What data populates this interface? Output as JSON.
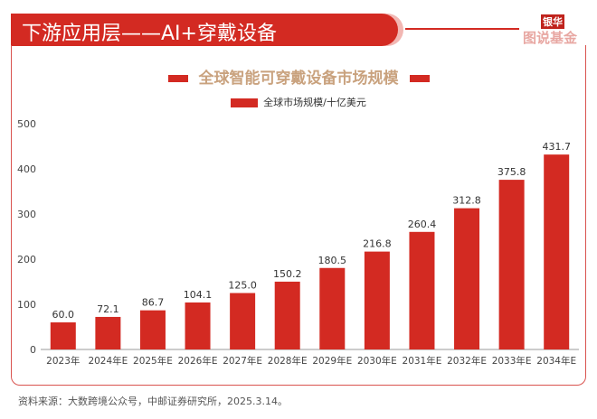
{
  "header": {
    "title": "下游应用层——AI+穿戴设备",
    "logo_top": "银华",
    "logo_bottom": "图说基金"
  },
  "chart_data": {
    "type": "bar",
    "title": "全球智能可穿戴设备市场规模",
    "categories": [
      "2023年",
      "2024年E",
      "2025年E",
      "2026年E",
      "2027年E",
      "2028年E",
      "2029年E",
      "2030年E",
      "2031年E",
      "2032年E",
      "2033年E",
      "2034年E"
    ],
    "series": [
      {
        "name": "全球市场规模/十亿美元",
        "values": [
          60.0,
          72.1,
          86.7,
          104.1,
          125.0,
          150.2,
          180.5,
          216.8,
          260.4,
          312.8,
          375.8,
          431.7
        ]
      }
    ],
    "ylim": [
      0,
      500
    ],
    "yticks": [
      0,
      100,
      200,
      300,
      400,
      500
    ],
    "legend": "top-center",
    "grid": false,
    "bar_color": "#d32a22"
  },
  "source": "资料来源：大数跨境公众号，中邮证券研究所，2025.3.14。"
}
